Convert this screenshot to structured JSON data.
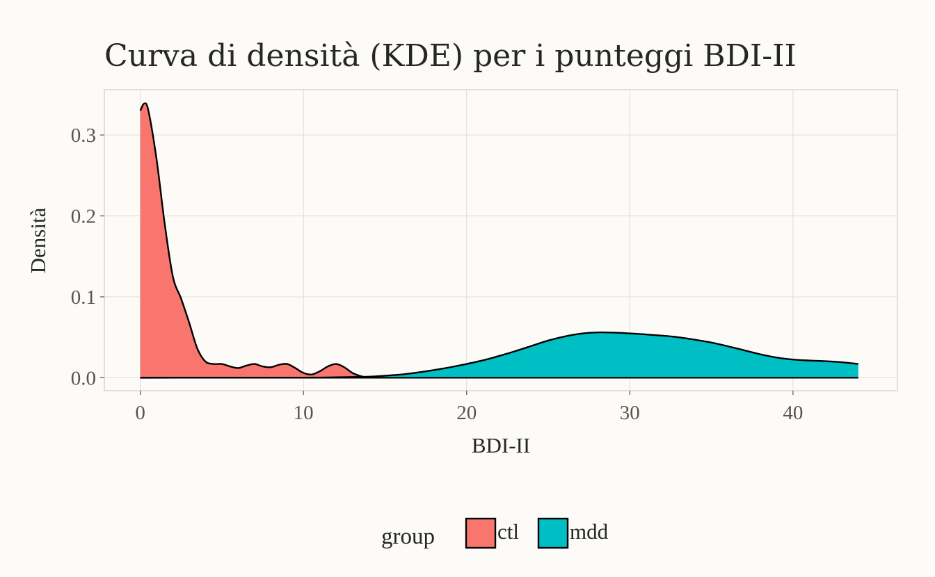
{
  "chart_data": {
    "type": "area",
    "title": "Curva di densità (KDE) per i punteggi BDI-II",
    "xlabel": "BDI-II",
    "ylabel": "Densità",
    "xlim": [
      -2.2,
      46.4
    ],
    "ylim": [
      -0.016,
      0.356
    ],
    "x_ticks": [
      0,
      10,
      20,
      30,
      40
    ],
    "x_tick_labels": [
      "0",
      "10",
      "20",
      "30",
      "40"
    ],
    "y_ticks": [
      0.0,
      0.1,
      0.2,
      0.3
    ],
    "y_tick_labels": [
      "0.0",
      "0.1",
      "0.2",
      "0.3"
    ],
    "grid": true,
    "legend": {
      "title": "group",
      "position": "bottom"
    },
    "series": [
      {
        "name": "ctl",
        "color": "#f8766d",
        "x": [
          0,
          0.25,
          0.5,
          1,
          1.5,
          2,
          2.5,
          3,
          3.5,
          4,
          4.5,
          5,
          5.5,
          6,
          6.5,
          7,
          7.5,
          8,
          8.5,
          9,
          9.5,
          10,
          10.5,
          11,
          11.5,
          12,
          12.5,
          13,
          13.5,
          14
        ],
        "y": [
          0.33,
          0.339,
          0.33,
          0.27,
          0.19,
          0.125,
          0.098,
          0.068,
          0.036,
          0.02,
          0.017,
          0.017,
          0.014,
          0.012,
          0.015,
          0.017,
          0.014,
          0.013,
          0.016,
          0.017,
          0.012,
          0.006,
          0.004,
          0.008,
          0.014,
          0.017,
          0.013,
          0.006,
          0.002,
          0.0
        ]
      },
      {
        "name": "mdd",
        "color": "#00bfc4",
        "x": [
          0,
          10,
          12,
          13,
          14,
          15,
          16,
          17,
          18,
          19,
          20,
          21,
          22,
          23,
          24,
          25,
          26,
          27,
          28,
          29,
          30,
          31,
          32,
          33,
          34,
          35,
          36,
          37,
          38,
          39,
          40,
          41,
          42,
          43,
          44
        ],
        "y": [
          0,
          0.0002,
          0.0006,
          0.0009,
          0.0013,
          0.0025,
          0.004,
          0.0065,
          0.0095,
          0.013,
          0.017,
          0.0215,
          0.027,
          0.033,
          0.0395,
          0.046,
          0.051,
          0.0545,
          0.056,
          0.0558,
          0.0548,
          0.0535,
          0.052,
          0.05,
          0.047,
          0.0435,
          0.039,
          0.034,
          0.029,
          0.025,
          0.0225,
          0.0213,
          0.0205,
          0.0192,
          0.017
        ]
      }
    ]
  }
}
